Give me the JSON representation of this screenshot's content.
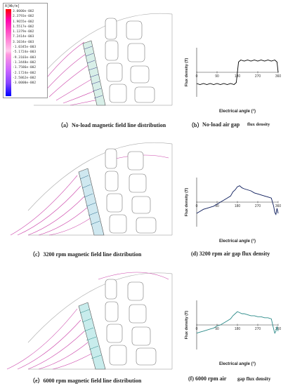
{
  "legend": {
    "title": "A[Wb/m]",
    "values": [
      "3.0000e-002",
      "2.3793e-002",
      "1.9655e-002",
      "1.5517e-002",
      "1.1379e-002",
      "7.2414e-003",
      "3.1034e-003",
      "-1.0345e-003",
      "-5.1724e-003",
      "-9.3103e-003",
      "-1.3448e-002",
      "-1.7586e-002",
      "-2.1724e-002",
      "-2.5862e-002",
      "-3.0000e-002"
    ]
  },
  "captions": {
    "a": "（a）No-load magnetic field line distribution",
    "b_prefix": "（b）",
    "b_text": "No-load air gap",
    "b_flux": "flux density",
    "c": "（c）3200 rpm magnetic field line distribution",
    "d": "(d) 3200 rpm air gap flux density",
    "e": "（e）6000 rpm magnetic field line distribution",
    "f_prefix": "(f) 6000 rpm air",
    "f_text": "gap flux density"
  },
  "plot_labels": {
    "b": {
      "ylabel": "Flux density (T)",
      "xlabel": "Electrical angle (°)"
    },
    "d": {
      "ylabel": "Flux density (T)",
      "xlabel": "Electrical angle (°)"
    },
    "f": {
      "ylabel": "Flux density (T)",
      "xlabel": "Electrical angle (°)"
    }
  },
  "chart_data": [
    {
      "type": "line",
      "panel": "b",
      "x_ticks": [
        "0",
        "90",
        "180",
        "270",
        "360"
      ],
      "x": [
        0,
        15,
        30,
        45,
        60,
        75,
        90,
        105,
        120,
        135,
        150,
        165,
        175,
        180,
        185,
        195,
        210,
        225,
        240,
        255,
        270,
        285,
        300,
        315,
        330,
        345,
        355,
        360
      ],
      "values": [
        -0.55,
        -0.6,
        -0.55,
        -0.6,
        -0.55,
        -0.6,
        -0.55,
        -0.6,
        -0.55,
        -0.6,
        -0.55,
        -0.6,
        -0.5,
        0.0,
        0.5,
        0.6,
        0.55,
        0.6,
        0.55,
        0.6,
        0.55,
        0.6,
        0.55,
        0.6,
        0.55,
        0.6,
        0.5,
        0.0
      ],
      "color": "#000000"
    },
    {
      "type": "line",
      "panel": "d",
      "x_ticks": [
        "0",
        "90",
        "180",
        "270",
        "360"
      ],
      "x": [
        0,
        15,
        30,
        45,
        60,
        75,
        90,
        105,
        120,
        135,
        150,
        160,
        170,
        180,
        190,
        200,
        210,
        225,
        240,
        255,
        270,
        285,
        300,
        315,
        330,
        340,
        345,
        350,
        355,
        360
      ],
      "values": [
        -0.55,
        -0.45,
        -0.35,
        -0.3,
        -0.25,
        -0.2,
        -0.1,
        0.0,
        0.1,
        0.2,
        0.3,
        0.5,
        0.6,
        0.75,
        0.8,
        0.7,
        0.65,
        0.6,
        0.55,
        0.45,
        0.4,
        0.35,
        0.3,
        0.25,
        0.2,
        -0.2,
        -0.5,
        -0.6,
        -0.3,
        -0.55
      ],
      "color": "#0a1a5a"
    },
    {
      "type": "line",
      "panel": "f",
      "x_ticks": [
        "0",
        "90",
        "180",
        "270",
        "360"
      ],
      "x": [
        0,
        15,
        30,
        45,
        60,
        75,
        90,
        105,
        120,
        135,
        150,
        160,
        170,
        180,
        190,
        200,
        210,
        225,
        240,
        255,
        270,
        285,
        300,
        315,
        330,
        340,
        345,
        350,
        355,
        360
      ],
      "values": [
        -0.4,
        -0.35,
        -0.3,
        -0.25,
        -0.2,
        -0.15,
        -0.05,
        0.0,
        0.1,
        0.2,
        0.3,
        0.45,
        0.55,
        0.65,
        0.6,
        0.55,
        0.55,
        0.5,
        0.45,
        0.45,
        0.4,
        0.4,
        0.35,
        0.35,
        0.3,
        -0.2,
        -0.4,
        -0.3,
        -0.1,
        -0.3
      ],
      "color": "#2a8a88"
    }
  ]
}
